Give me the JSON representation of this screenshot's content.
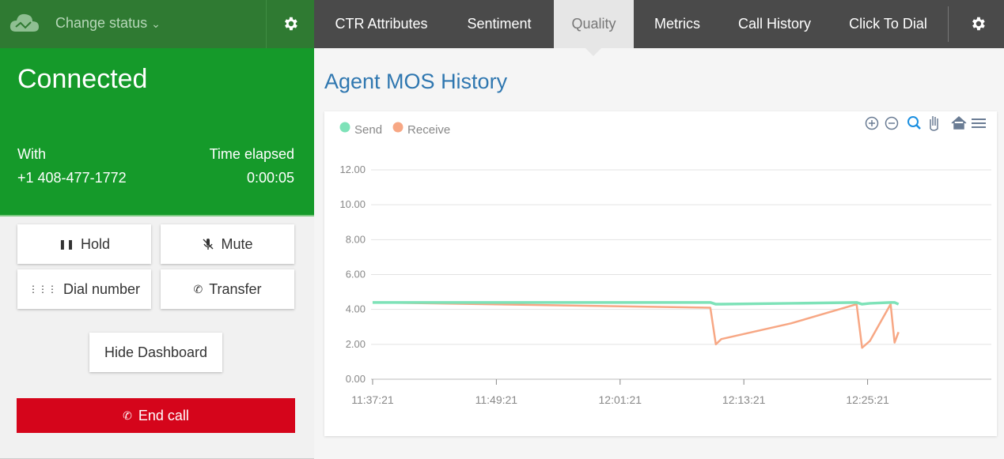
{
  "header": {
    "status": "Change status",
    "tabs": [
      "CTR Attributes",
      "Sentiment",
      "Quality",
      "Metrics",
      "Call History",
      "Click To Dial"
    ],
    "active_tab": 2
  },
  "call_panel": {
    "state": "Connected",
    "with_label": "With",
    "elapsed_label": "Time elapsed",
    "number": "+1 408-477-1772",
    "elapsed": "0:00:05"
  },
  "buttons": {
    "hold": "Hold",
    "mute": "Mute",
    "dial": "Dial number",
    "transfer": "Transfer",
    "dashboard": "Hide Dashboard",
    "end": "End call"
  },
  "chart_data": {
    "type": "line",
    "title": "Agent MOS History",
    "x": [
      "11:37:21",
      "12:10:06",
      "12:10:38",
      "12:11:10",
      "12:17:55",
      "12:24:17",
      "12:24:49",
      "12:25:35",
      "12:27:35",
      "12:27:58",
      "12:28:21"
    ],
    "series": [
      {
        "name": "Send",
        "color": "#7ee2b8",
        "values": [
          4.4,
          4.4,
          4.3,
          4.3,
          4.35,
          4.4,
          4.3,
          4.35,
          4.4,
          4.4,
          4.3
        ]
      },
      {
        "name": "Receive",
        "color": "#f7a784",
        "values": [
          4.4,
          4.1,
          2.0,
          2.3,
          3.2,
          4.3,
          1.8,
          2.2,
          4.3,
          2.1,
          2.7
        ]
      }
    ],
    "xlim": [
      "11:37:12",
      "12:37:21"
    ],
    "xticks": [
      "11:37:21",
      "11:49:21",
      "12:01:21",
      "12:13:21",
      "12:25:21"
    ],
    "ylim": [
      0,
      12
    ],
    "yticks": [
      {
        "value": 0,
        "label": "0.00"
      },
      {
        "value": 2,
        "label": "2.00"
      },
      {
        "value": 4,
        "label": "4.00"
      },
      {
        "value": 6,
        "label": "6.00"
      },
      {
        "value": 8,
        "label": "8.00"
      },
      {
        "value": 10,
        "label": "10.00"
      },
      {
        "value": 12,
        "label": "12.00"
      }
    ],
    "grid": true,
    "legend": "top-left"
  }
}
